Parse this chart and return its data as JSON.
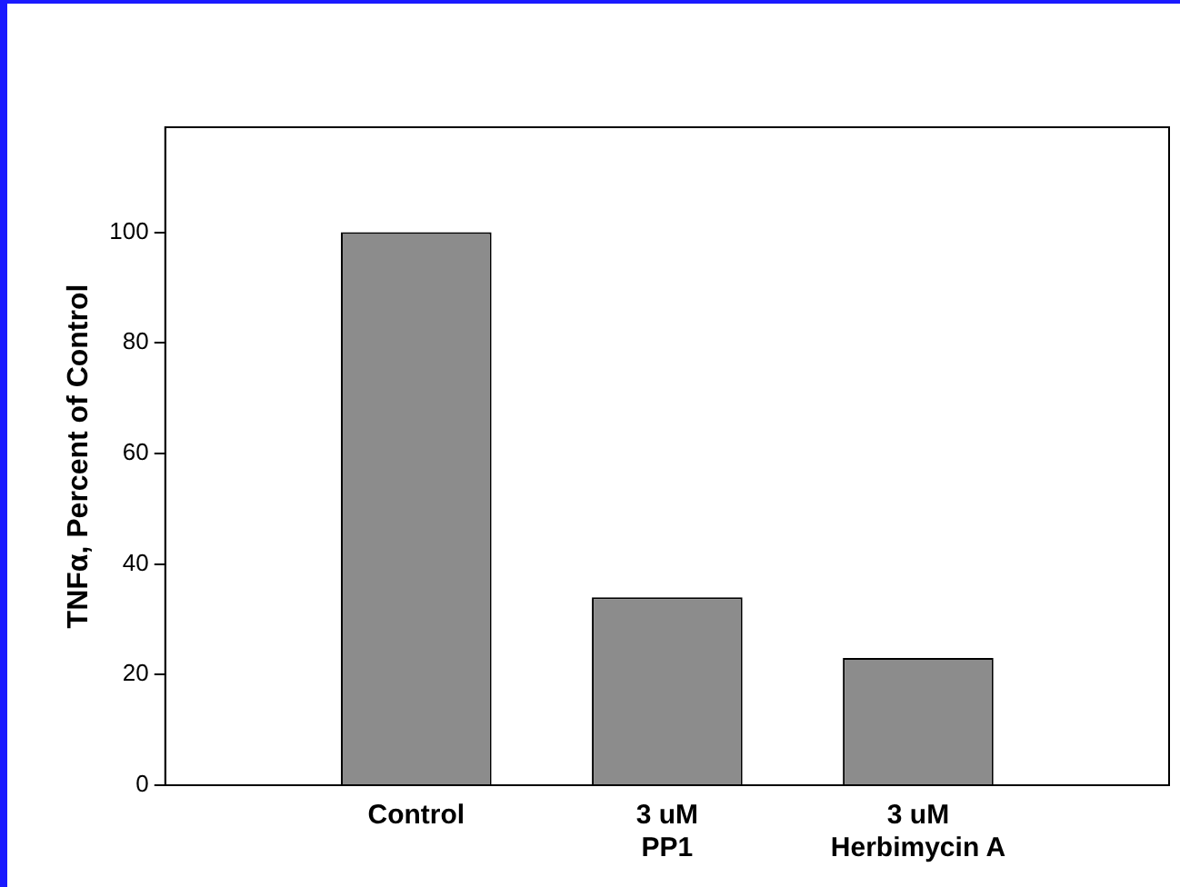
{
  "chart_data": {
    "type": "bar",
    "ylabel": "TNFα, Percent of Control",
    "categories": [
      null,
      "Control",
      "3 uM\nPP1",
      "3 uM\nHerbimycin A",
      null
    ],
    "values": [
      null,
      100,
      34,
      23,
      null
    ],
    "color": "#8c8c8c",
    "ylim": [
      0,
      119
    ],
    "yticks": [
      0,
      20,
      40,
      60,
      80,
      100
    ],
    "grid": false,
    "legend": false
  }
}
